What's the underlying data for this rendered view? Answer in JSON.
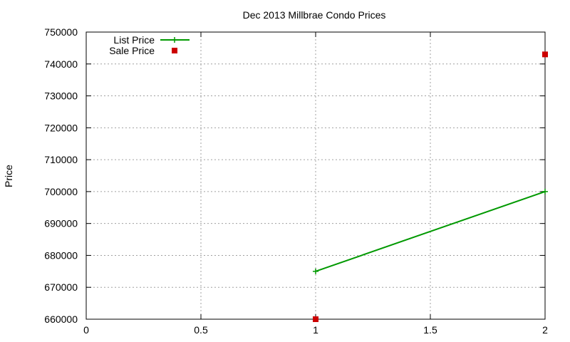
{
  "chart_data": {
    "type": "line",
    "title": "Dec 2013 Millbrae Condo Prices",
    "xlabel": "",
    "ylabel": "Price",
    "xlim": [
      0,
      2
    ],
    "ylim": [
      660000,
      750000
    ],
    "grid": true,
    "legend_position": "top-left",
    "x_ticks": [
      0,
      0.5,
      1,
      1.5,
      2
    ],
    "x_tick_labels": [
      "0",
      "0.5",
      "1",
      "1.5",
      "2"
    ],
    "y_ticks": [
      660000,
      670000,
      680000,
      690000,
      700000,
      710000,
      720000,
      730000,
      740000,
      750000
    ],
    "y_tick_labels": [
      "660000",
      "670000",
      "680000",
      "690000",
      "700000",
      "710000",
      "720000",
      "730000",
      "740000",
      "750000"
    ],
    "series": [
      {
        "name": "List Price",
        "style": "linespoints",
        "marker": "plus",
        "color": "#009900",
        "points": [
          {
            "x": 1,
            "y": 675000
          },
          {
            "x": 2,
            "y": 700000
          }
        ]
      },
      {
        "name": "Sale Price",
        "style": "points",
        "marker": "square",
        "color": "#cc0000",
        "points": [
          {
            "x": 1,
            "y": 660000
          },
          {
            "x": 2,
            "y": 743000
          }
        ]
      }
    ]
  }
}
